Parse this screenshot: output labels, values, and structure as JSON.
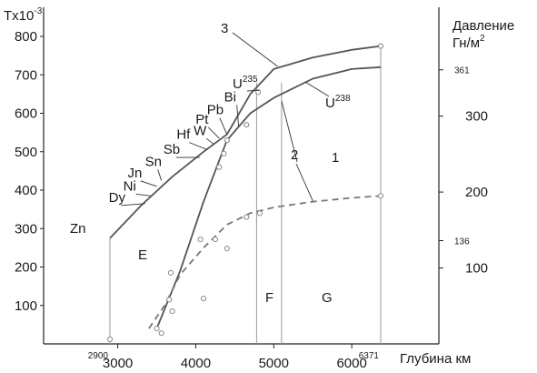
{
  "chart_data": {
    "type": "line",
    "title": "",
    "y_axis_left": {
      "label": "Tx10",
      "label_exponent": "-3",
      "ticks": [
        100,
        200,
        300,
        400,
        500,
        600,
        700,
        800
      ],
      "range": [
        0,
        850
      ]
    },
    "y_axis_right": {
      "label_line1": "Давление",
      "label_line2": "Гн/м",
      "label_exponent": "2",
      "ticks_major": [
        100,
        200,
        300
      ],
      "ticks_minor": [
        136,
        361
      ]
    },
    "x_axis": {
      "label": "Глубина км",
      "ticks": [
        3000,
        4000,
        5000,
        6000
      ],
      "edge_ticks": [
        2900,
        6371
      ],
      "range": [
        2900,
        6371
      ]
    },
    "series": [
      {
        "name": "1",
        "style": "solid",
        "x": [
          3500,
          3800,
          4100,
          4400,
          4700,
          5000,
          5500,
          6000,
          6371
        ],
        "y": [
          40,
          190,
          370,
          530,
          600,
          640,
          690,
          715,
          720
        ]
      },
      {
        "name": "2",
        "style": "dashed",
        "x": [
          3400,
          3600,
          3800,
          4100,
          4400,
          4700,
          5000,
          5500,
          6000,
          6371
        ],
        "y": [
          40,
          100,
          180,
          250,
          310,
          340,
          355,
          370,
          380,
          385
        ]
      },
      {
        "name": "3",
        "style": "solid",
        "x": [
          2900,
          3300,
          3700,
          4100,
          4400,
          4700,
          5000,
          5500,
          6000,
          6371
        ],
        "y": [
          275,
          360,
          435,
          500,
          545,
          650,
          715,
          745,
          765,
          775
        ]
      }
    ],
    "points": [
      {
        "x": 2900,
        "y": 12
      },
      {
        "x": 3500,
        "y": 40
      },
      {
        "x": 3560,
        "y": 28
      },
      {
        "x": 3660,
        "y": 115
      },
      {
        "x": 3680,
        "y": 185
      },
      {
        "x": 3700,
        "y": 85
      },
      {
        "x": 4060,
        "y": 272
      },
      {
        "x": 4100,
        "y": 118
      },
      {
        "x": 4250,
        "y": 272
      },
      {
        "x": 4300,
        "y": 460
      },
      {
        "x": 4360,
        "y": 495
      },
      {
        "x": 4400,
        "y": 530
      },
      {
        "x": 4400,
        "y": 248
      },
      {
        "x": 4650,
        "y": 570
      },
      {
        "x": 4650,
        "y": 330
      },
      {
        "x": 4800,
        "y": 655
      },
      {
        "x": 4820,
        "y": 340
      },
      {
        "x": 6371,
        "y": 775
      },
      {
        "x": 6371,
        "y": 385
      }
    ],
    "vertical_lines": [
      2900,
      4780,
      5100,
      6371
    ],
    "elements": [
      {
        "label": "Zn",
        "x": 2900,
        "y": 275
      },
      {
        "label": "Dy",
        "x": 3350,
        "y": 365
      },
      {
        "label": "Ni",
        "x": 3420,
        "y": 385
      },
      {
        "label": "Jn",
        "x": 3500,
        "y": 410
      },
      {
        "label": "Sn",
        "x": 3560,
        "y": 425
      },
      {
        "label": "Sb",
        "x": 4050,
        "y": 485
      },
      {
        "label": "Hf",
        "x": 4150,
        "y": 505
      },
      {
        "label": "W",
        "x": 4230,
        "y": 520
      },
      {
        "label": "Pt",
        "x": 4300,
        "y": 535
      },
      {
        "label": "Pb",
        "x": 4400,
        "y": 545
      },
      {
        "label": "Bi",
        "x": 4550,
        "y": 565
      }
    ],
    "annotations": {
      "u235": {
        "base": "U",
        "exp": "235"
      },
      "u238": {
        "base": "U",
        "exp": "238"
      },
      "region_e": "E",
      "region_f": "F",
      "region_g": "G"
    }
  }
}
